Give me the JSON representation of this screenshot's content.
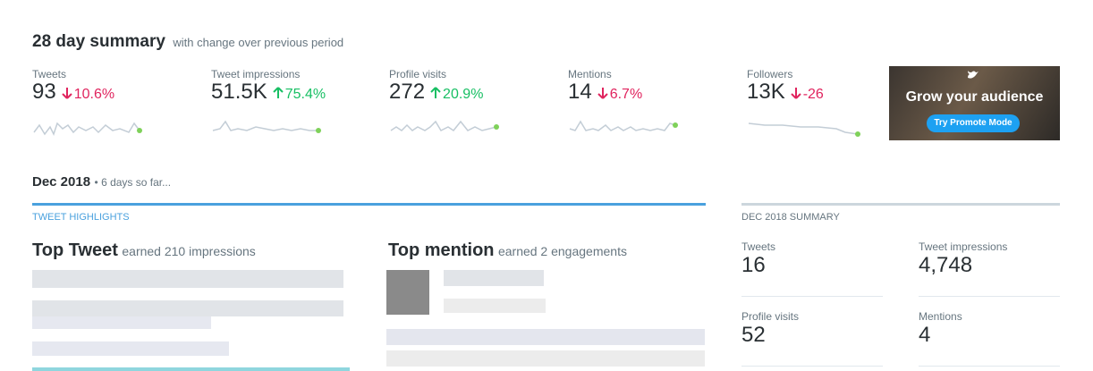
{
  "header": {
    "title": "28 day summary",
    "subtitle": "with change over previous period"
  },
  "metrics": [
    {
      "label": "Tweets",
      "value": "93",
      "change": "10.6%",
      "direction": "down"
    },
    {
      "label": "Tweet impressions",
      "value": "51.5K",
      "change": "75.4%",
      "direction": "up"
    },
    {
      "label": "Profile visits",
      "value": "272",
      "change": "20.9%",
      "direction": "up"
    },
    {
      "label": "Mentions",
      "value": "14",
      "change": "6.7%",
      "direction": "down"
    },
    {
      "label": "Followers",
      "value": "13K",
      "change": "-26",
      "direction": "down"
    }
  ],
  "promo": {
    "title": "Grow your audience",
    "button": "Try Promote Mode"
  },
  "month": {
    "title": "Dec 2018",
    "note": "6 days so far..."
  },
  "highlights": {
    "heading": "TWEET HIGHLIGHTS",
    "top_tweet": {
      "title": "Top Tweet",
      "note": "earned 210 impressions"
    },
    "top_mention": {
      "title": "Top mention",
      "note": "earned 2 engagements"
    }
  },
  "summary": {
    "heading": "DEC 2018 SUMMARY",
    "items": [
      {
        "label": "Tweets",
        "value": "16"
      },
      {
        "label": "Tweet impressions",
        "value": "4,748"
      },
      {
        "label": "Profile visits",
        "value": "52"
      },
      {
        "label": "Mentions",
        "value": "4"
      }
    ]
  }
}
